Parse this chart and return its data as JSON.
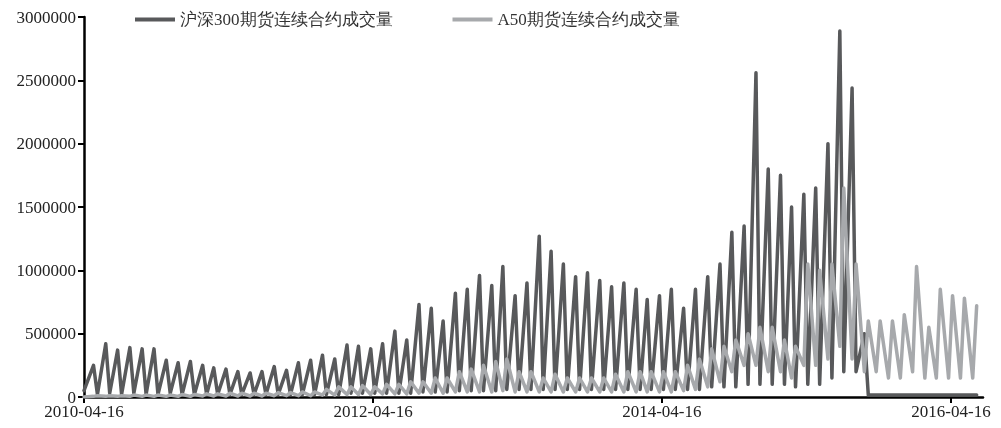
{
  "chart_data": {
    "type": "line",
    "x": [
      "2010-04-16",
      "2010-05-10",
      "2010-05-20",
      "2010-06-10",
      "2010-06-20",
      "2010-07-10",
      "2010-07-20",
      "2010-08-10",
      "2010-08-20",
      "2010-09-10",
      "2010-09-20",
      "2010-10-10",
      "2010-10-20",
      "2010-11-10",
      "2010-11-20",
      "2010-12-10",
      "2010-12-20",
      "2011-01-10",
      "2011-01-20",
      "2011-02-10",
      "2011-02-20",
      "2011-03-10",
      "2011-03-20",
      "2011-04-10",
      "2011-04-20",
      "2011-05-10",
      "2011-05-20",
      "2011-06-10",
      "2011-06-20",
      "2011-07-10",
      "2011-07-20",
      "2011-08-10",
      "2011-08-20",
      "2011-09-10",
      "2011-09-20",
      "2011-10-10",
      "2011-10-20",
      "2011-11-10",
      "2011-11-20",
      "2011-12-10",
      "2011-12-20",
      "2012-01-10",
      "2012-01-20",
      "2012-02-10",
      "2012-02-20",
      "2012-03-10",
      "2012-03-20",
      "2012-04-10",
      "2012-04-20",
      "2012-05-10",
      "2012-05-20",
      "2012-06-10",
      "2012-06-20",
      "2012-07-10",
      "2012-07-20",
      "2012-08-10",
      "2012-08-20",
      "2012-09-10",
      "2012-09-20",
      "2012-10-10",
      "2012-10-20",
      "2012-11-10",
      "2012-11-20",
      "2012-12-10",
      "2012-12-20",
      "2013-01-10",
      "2013-01-20",
      "2013-02-10",
      "2013-02-20",
      "2013-03-10",
      "2013-03-20",
      "2013-04-10",
      "2013-04-20",
      "2013-05-10",
      "2013-05-20",
      "2013-06-10",
      "2013-06-20",
      "2013-07-10",
      "2013-07-20",
      "2013-08-10",
      "2013-08-20",
      "2013-09-10",
      "2013-09-20",
      "2013-10-10",
      "2013-10-20",
      "2013-11-10",
      "2013-11-20",
      "2013-12-10",
      "2013-12-20",
      "2014-01-10",
      "2014-01-20",
      "2014-02-10",
      "2014-02-20",
      "2014-03-10",
      "2014-03-20",
      "2014-04-10",
      "2014-04-20",
      "2014-05-10",
      "2014-05-20",
      "2014-06-10",
      "2014-06-20",
      "2014-07-10",
      "2014-07-20",
      "2014-08-10",
      "2014-08-20",
      "2014-09-10",
      "2014-09-20",
      "2014-10-10",
      "2014-10-20",
      "2014-11-10",
      "2014-11-20",
      "2014-12-10",
      "2014-12-20",
      "2015-01-10",
      "2015-01-20",
      "2015-02-10",
      "2015-02-20",
      "2015-03-10",
      "2015-03-20",
      "2015-04-10",
      "2015-04-20",
      "2015-05-10",
      "2015-05-20",
      "2015-06-10",
      "2015-06-20",
      "2015-07-10",
      "2015-07-20",
      "2015-08-10",
      "2015-08-20",
      "2015-09-10",
      "2015-09-20",
      "2015-10-10",
      "2015-10-20",
      "2015-11-10",
      "2015-11-20",
      "2015-12-10",
      "2015-12-20",
      "2016-01-10",
      "2016-01-20",
      "2016-02-10",
      "2016-02-20",
      "2016-03-10",
      "2016-03-20",
      "2016-04-10",
      "2016-04-20",
      "2016-05-10",
      "2016-05-20",
      "2016-06-10",
      "2016-06-20"
    ],
    "series": [
      {
        "name": "沪深300期货连续合约成交量",
        "color": "#58595b",
        "values": [
          50000,
          250000,
          20000,
          420000,
          30000,
          370000,
          20000,
          390000,
          30000,
          380000,
          20000,
          380000,
          20000,
          290000,
          30000,
          270000,
          20000,
          280000,
          20000,
          250000,
          20000,
          230000,
          20000,
          220000,
          20000,
          200000,
          20000,
          190000,
          20000,
          200000,
          20000,
          240000,
          20000,
          210000,
          20000,
          270000,
          20000,
          290000,
          20000,
          330000,
          20000,
          300000,
          20000,
          410000,
          30000,
          400000,
          30000,
          380000,
          30000,
          420000,
          30000,
          520000,
          30000,
          450000,
          30000,
          730000,
          40000,
          700000,
          40000,
          600000,
          40000,
          820000,
          50000,
          850000,
          50000,
          960000,
          50000,
          880000,
          50000,
          1030000,
          60000,
          800000,
          60000,
          900000,
          60000,
          1270000,
          60000,
          1150000,
          60000,
          1050000,
          60000,
          950000,
          60000,
          980000,
          60000,
          920000,
          60000,
          870000,
          60000,
          900000,
          60000,
          850000,
          60000,
          770000,
          60000,
          800000,
          60000,
          850000,
          60000,
          700000,
          60000,
          850000,
          60000,
          950000,
          80000,
          1050000,
          80000,
          1300000,
          80000,
          1350000,
          100000,
          2560000,
          100000,
          1800000,
          100000,
          1750000,
          100000,
          1500000,
          80000,
          1600000,
          100000,
          1650000,
          100000,
          2000000,
          150000,
          2890000,
          200000,
          2440000,
          200000,
          500000,
          15000,
          15000,
          15000,
          15000,
          15000,
          15000,
          15000,
          15000,
          15000,
          15000,
          15000,
          15000,
          15000,
          15000,
          15000,
          15000,
          15000,
          15000,
          15000
        ]
      },
      {
        "name": "A50期货连续合约成交量",
        "color": "#a7a9ac",
        "values": [
          0,
          5000,
          10000,
          5000,
          10000,
          5000,
          10000,
          5000,
          15000,
          5000,
          15000,
          5000,
          15000,
          5000,
          15000,
          5000,
          20000,
          5000,
          20000,
          8000,
          25000,
          8000,
          25000,
          8000,
          30000,
          8000,
          30000,
          8000,
          30000,
          8000,
          30000,
          10000,
          35000,
          10000,
          35000,
          10000,
          40000,
          10000,
          40000,
          15000,
          60000,
          15000,
          80000,
          20000,
          80000,
          20000,
          90000,
          20000,
          80000,
          25000,
          100000,
          25000,
          100000,
          25000,
          120000,
          30000,
          120000,
          30000,
          150000,
          30000,
          150000,
          40000,
          200000,
          40000,
          220000,
          40000,
          250000,
          40000,
          280000,
          50000,
          300000,
          40000,
          200000,
          40000,
          200000,
          40000,
          150000,
          40000,
          180000,
          40000,
          150000,
          40000,
          150000,
          40000,
          150000,
          40000,
          150000,
          40000,
          180000,
          40000,
          200000,
          40000,
          200000,
          40000,
          200000,
          40000,
          200000,
          40000,
          200000,
          50000,
          250000,
          60000,
          300000,
          80000,
          380000,
          120000,
          400000,
          200000,
          450000,
          250000,
          500000,
          250000,
          550000,
          200000,
          550000,
          200000,
          450000,
          150000,
          400000,
          250000,
          1050000,
          250000,
          1000000,
          300000,
          1050000,
          400000,
          1650000,
          300000,
          1050000,
          200000,
          600000,
          200000,
          600000,
          150000,
          600000,
          150000,
          650000,
          200000,
          1030000,
          150000,
          550000,
          150000,
          850000,
          150000,
          800000,
          150000,
          780000,
          150000,
          720000
        ]
      }
    ],
    "xlim": [
      "2010-04-16",
      "2016-07-06"
    ],
    "xticks": [
      "2010-04-16",
      "2012-04-16",
      "2014-04-16",
      "2016-04-16"
    ],
    "ylim": [
      0,
      3000000
    ],
    "yticks": [
      0,
      500000,
      1000000,
      1500000,
      2000000,
      2500000,
      3000000
    ],
    "grid": false,
    "legend": "top",
    "marker": "none",
    "line_style": "solid"
  }
}
